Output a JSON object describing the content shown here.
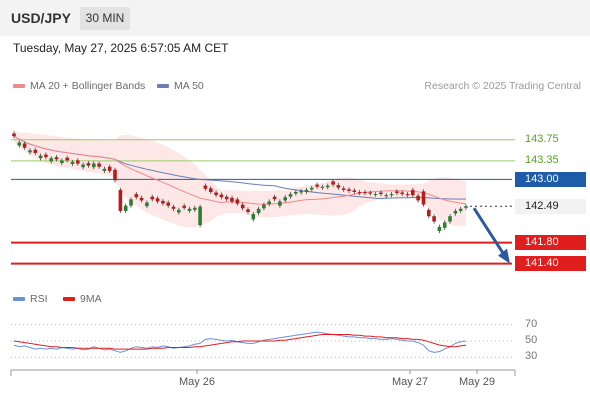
{
  "header": {
    "symbol": "USD/JPY",
    "timeframe": "30 MIN",
    "datetime": "Tuesday, May 27, 2025 6:57:05 AM CET"
  },
  "legend": {
    "ma20": "MA 20 + Bollinger Bands",
    "ma50": "MA 50",
    "copyright": "Research © 2025 Trading Central",
    "rsi": "RSI",
    "rsi_ma": "9MA"
  },
  "colors": {
    "up": "#2e7d32",
    "down": "#b71c1c",
    "ma20": "#ef8a8a",
    "bollinger_fill": "#fde3e3",
    "ma50": "#6a7fb5",
    "resistance": "#9ccc65",
    "pivot": "#1e5ba8",
    "support": "#e01e1e",
    "arrow": "#2d5a9e",
    "rsi": "#6f8fd8",
    "rsi_ma": "#e01e1e"
  },
  "chart_data": [
    {
      "type": "candlestick",
      "title": "USD/JPY 30 MIN",
      "x_tick_labels": [
        "May 26",
        "May 27",
        "May 29"
      ],
      "ylim": [
        140.9,
        144.6
      ],
      "levels": [
        {
          "value": 143.75,
          "label": "143.75",
          "kind": "resistance"
        },
        {
          "value": 143.35,
          "label": "143.35",
          "kind": "resistance"
        },
        {
          "value": 143.0,
          "label": "143.00",
          "kind": "pivot"
        },
        {
          "value": 141.8,
          "label": "141.80",
          "kind": "support"
        },
        {
          "value": 141.4,
          "label": "141.40",
          "kind": "support"
        }
      ],
      "last_price": 142.49,
      "last_price_label": "142.49",
      "forecast_arrow": {
        "from": 142.49,
        "to": 141.4
      },
      "close": [
        143.82,
        143.7,
        143.6,
        143.55,
        143.5,
        143.45,
        143.42,
        143.4,
        143.38,
        143.36,
        143.36,
        143.33,
        143.3,
        143.28,
        143.26,
        143.3,
        143.24,
        143.2,
        143.16,
        142.98,
        142.4,
        142.5,
        142.62,
        142.66,
        142.6,
        142.56,
        142.62,
        142.58,
        142.54,
        142.5,
        142.44,
        142.42,
        142.46,
        142.44,
        142.46,
        142.48,
        142.82,
        142.76,
        142.7,
        142.66,
        142.62,
        142.58,
        142.54,
        142.45,
        142.38,
        142.34,
        142.44,
        142.52,
        142.58,
        142.62,
        142.58,
        142.66,
        142.72,
        142.76,
        142.78,
        142.8,
        142.84,
        142.86,
        142.86,
        142.88,
        142.9,
        142.84,
        142.8,
        142.78,
        142.76,
        142.74,
        142.74,
        142.73,
        142.72,
        142.72,
        142.7,
        142.72,
        142.74,
        142.72,
        142.7,
        142.7,
        142.6,
        142.52,
        142.3,
        142.2,
        142.1,
        142.18,
        142.3,
        142.4,
        142.44,
        142.49
      ],
      "open_offset": [
        0.05,
        -0.06,
        0.08,
        -0.04,
        0.06,
        -0.05,
        0.05,
        -0.06,
        0.04,
        -0.05,
        0.05,
        -0.04,
        0.06,
        -0.05,
        0.05,
        -0.07,
        0.06,
        -0.04,
        0.08,
        0.2,
        0.4,
        -0.1,
        -0.12,
        0.06,
        0.05,
        -0.07,
        0.05,
        0.06,
        0.05,
        0.06,
        0.04,
        -0.05,
        0.04,
        -0.04,
        -0.04,
        -0.35,
        0.06,
        0.07,
        0.05,
        0.05,
        0.05,
        0.07,
        0.08,
        0.07,
        0.05,
        -0.1,
        -0.08,
        -0.07,
        -0.05,
        0.05,
        -0.08,
        -0.06,
        -0.05,
        -0.03,
        -0.03,
        -0.04,
        -0.03,
        0.04,
        -0.02,
        -0.03,
        0.06,
        0.05,
        0.03,
        0.03,
        0.03,
        0.02,
        0.02,
        0.02,
        -0.01,
        0.03,
        -0.02,
        -0.02,
        0.03,
        0.03,
        0.02,
        0.1,
        0.09,
        0.25,
        0.12,
        0.1,
        -0.08,
        -0.1,
        -0.1,
        -0.05,
        -0.04,
        -0.03
      ]
    },
    {
      "type": "line",
      "title": "RSI",
      "yticks": [
        30,
        50,
        70
      ],
      "ylim": [
        18,
        82
      ],
      "series": [
        {
          "name": "RSI",
          "values": [
            45,
            43,
            44,
            42,
            40,
            41,
            40,
            41,
            40,
            42,
            41,
            40,
            41,
            39,
            40,
            43,
            41,
            39,
            40,
            38,
            36,
            38,
            41,
            43,
            42,
            41,
            43,
            42,
            44,
            43,
            41,
            42,
            43,
            44,
            46,
            47,
            52,
            53,
            52,
            51,
            50,
            51,
            49,
            48,
            47,
            47,
            49,
            51,
            52,
            53,
            54,
            55,
            56,
            57,
            58,
            59,
            60,
            61,
            60,
            59,
            58,
            57,
            56,
            55,
            55,
            54,
            54,
            53,
            53,
            52,
            52,
            53,
            52,
            51,
            50,
            50,
            48,
            45,
            38,
            36,
            37,
            40,
            43,
            47,
            49,
            50
          ]
        },
        {
          "name": "9MA",
          "values": [
            50,
            49,
            48,
            47,
            46,
            45,
            44,
            43,
            43,
            42,
            42,
            42,
            41,
            41,
            41,
            41,
            41,
            41,
            41,
            40,
            40,
            40,
            40,
            40,
            40,
            40,
            41,
            41,
            41,
            42,
            42,
            42,
            42,
            42,
            43,
            43,
            44,
            45,
            46,
            47,
            48,
            49,
            49,
            50,
            50,
            50,
            50,
            50,
            50,
            50,
            51,
            51,
            52,
            53,
            54,
            55,
            56,
            57,
            58,
            58,
            58,
            58,
            58,
            58,
            57,
            57,
            56,
            56,
            55,
            55,
            54,
            54,
            54,
            53,
            53,
            52,
            52,
            51,
            49,
            47,
            45,
            44,
            43,
            43,
            44,
            45
          ]
        }
      ]
    }
  ]
}
